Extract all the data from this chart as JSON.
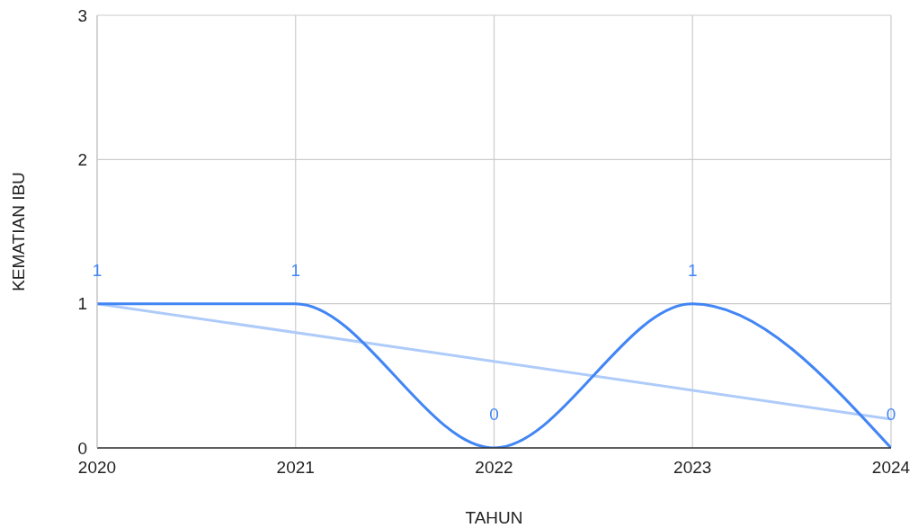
{
  "chart_data": {
    "type": "line",
    "xlabel": "TAHUN",
    "ylabel": "KEMATIAN IBU",
    "x": [
      2020,
      2021,
      2022,
      2023,
      2024
    ],
    "xlim": [
      2020,
      2024
    ],
    "xticks": [
      2020,
      2021,
      2022,
      2023,
      2024
    ],
    "ylim": [
      0,
      3
    ],
    "yticks": [
      0,
      1,
      2,
      3
    ],
    "grid": true,
    "series": [
      {
        "color": "#4285f4",
        "values": [
          1,
          1,
          0,
          1,
          0
        ],
        "value_labels": [
          "1",
          "1",
          "0",
          "1",
          "0"
        ]
      },
      {
        "type": "line",
        "color": "#aecbfa",
        "x": [
          2020,
          2024
        ],
        "values": [
          1,
          0.2
        ]
      }
    ]
  }
}
